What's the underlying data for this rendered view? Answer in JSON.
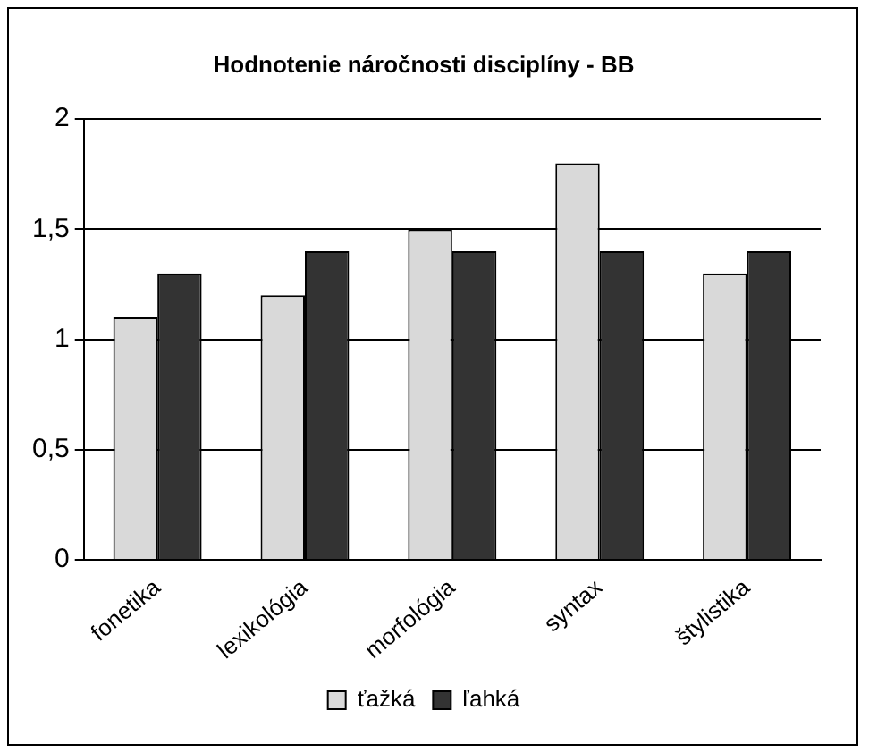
{
  "chart_data": {
    "type": "bar",
    "title": "Hodnotenie náročnosti disciplíny - BB",
    "categories": [
      "fonetika",
      "lexikológia",
      "morfológia",
      "syntax",
      "štylistika"
    ],
    "series": [
      {
        "name": "ťažká",
        "color": "#d9d9d9",
        "values": [
          1.1,
          1.2,
          1.5,
          1.8,
          1.3
        ]
      },
      {
        "name": "ľahká",
        "color": "#333333",
        "values": [
          1.3,
          1.4,
          1.4,
          1.4,
          1.4
        ]
      }
    ],
    "ylim": [
      0,
      2
    ],
    "yticks": [
      {
        "value": 0,
        "label": "0"
      },
      {
        "value": 0.5,
        "label": "0,5"
      },
      {
        "value": 1,
        "label": "1"
      },
      {
        "value": 1.5,
        "label": "1,5"
      },
      {
        "value": 2,
        "label": "2"
      }
    ],
    "grid": "y",
    "legend": "bottom"
  }
}
